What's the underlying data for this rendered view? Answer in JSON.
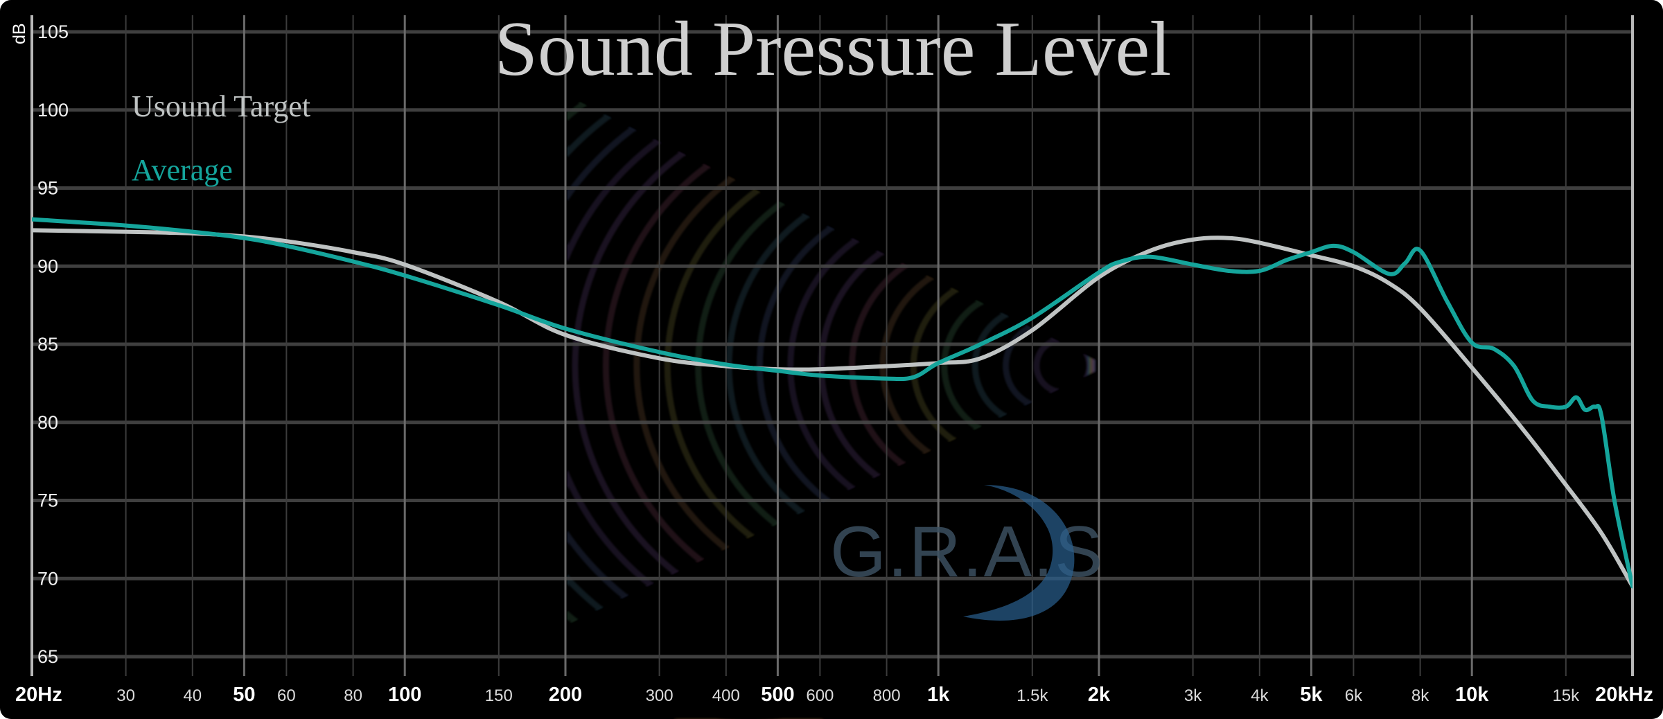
{
  "chart_data": {
    "type": "line",
    "title": "Sound Pressure Level",
    "ylabel": "dB",
    "xscale": "log",
    "xlim": [
      20,
      20000
    ],
    "ylim": [
      64,
      106
    ],
    "y_ticks": [
      105,
      100,
      95,
      90,
      85,
      80,
      75,
      70,
      65
    ],
    "x_ticks": [
      {
        "value": 20,
        "label": "20Hz",
        "major": true
      },
      {
        "value": 30,
        "label": "30",
        "major": false
      },
      {
        "value": 40,
        "label": "40",
        "major": false
      },
      {
        "value": 50,
        "label": "50",
        "major": true
      },
      {
        "value": 60,
        "label": "60",
        "major": false
      },
      {
        "value": 80,
        "label": "80",
        "major": false
      },
      {
        "value": 100,
        "label": "100",
        "major": true
      },
      {
        "value": 150,
        "label": "150",
        "major": false
      },
      {
        "value": 200,
        "label": "200",
        "major": true
      },
      {
        "value": 300,
        "label": "300",
        "major": false
      },
      {
        "value": 400,
        "label": "400",
        "major": false
      },
      {
        "value": 500,
        "label": "500",
        "major": true
      },
      {
        "value": 600,
        "label": "600",
        "major": false
      },
      {
        "value": 800,
        "label": "800",
        "major": false
      },
      {
        "value": 1000,
        "label": "1k",
        "major": true
      },
      {
        "value": 1500,
        "label": "1.5k",
        "major": false
      },
      {
        "value": 2000,
        "label": "2k",
        "major": true
      },
      {
        "value": 3000,
        "label": "3k",
        "major": false
      },
      {
        "value": 4000,
        "label": "4k",
        "major": false
      },
      {
        "value": 5000,
        "label": "5k",
        "major": true
      },
      {
        "value": 6000,
        "label": "6k",
        "major": false
      },
      {
        "value": 8000,
        "label": "8k",
        "major": false
      },
      {
        "value": 10000,
        "label": "10k",
        "major": true
      },
      {
        "value": 15000,
        "label": "15k",
        "major": false
      },
      {
        "value": 20000,
        "label": "20kHz",
        "major": true
      }
    ],
    "grid": true,
    "legend_position": "top-left",
    "series": [
      {
        "name": "Usound Target",
        "color": "#bfc3c3",
        "x": [
          20,
          30,
          40,
          50,
          60,
          80,
          100,
          150,
          200,
          300,
          400,
          500,
          600,
          800,
          1000,
          1200,
          1500,
          2000,
          2500,
          3000,
          3500,
          4000,
          5000,
          6000,
          7000,
          8000,
          10000,
          12500,
          15000,
          17500,
          20000
        ],
        "values": [
          92.3,
          92.2,
          92.1,
          91.9,
          91.6,
          90.9,
          90.1,
          87.7,
          85.6,
          84.1,
          83.6,
          83.4,
          83.4,
          83.6,
          83.8,
          84.1,
          85.9,
          89.3,
          91.0,
          91.7,
          91.8,
          91.5,
          90.7,
          90.0,
          88.9,
          87.3,
          83.5,
          79.5,
          76.0,
          72.9,
          69.5
        ]
      },
      {
        "name": "Average",
        "color": "#15a59c",
        "x": [
          20,
          30,
          40,
          50,
          60,
          80,
          100,
          150,
          200,
          300,
          400,
          500,
          600,
          800,
          900,
          1000,
          1200,
          1500,
          2000,
          2200,
          2500,
          3000,
          3500,
          4000,
          4500,
          5000,
          5500,
          6000,
          7000,
          7500,
          8000,
          9000,
          10000,
          11000,
          12000,
          13000,
          14000,
          15000,
          15700,
          16300,
          17000,
          17500,
          18500,
          20000
        ],
        "values": [
          93.0,
          92.6,
          92.2,
          91.8,
          91.3,
          90.3,
          89.4,
          87.5,
          86.0,
          84.5,
          83.7,
          83.3,
          83.0,
          82.8,
          82.9,
          83.8,
          85.0,
          86.7,
          89.6,
          90.3,
          90.6,
          90.1,
          89.7,
          89.7,
          90.4,
          90.9,
          91.3,
          90.9,
          89.5,
          90.2,
          91.0,
          87.7,
          85.1,
          84.7,
          83.6,
          81.4,
          81.0,
          81.0,
          81.6,
          80.8,
          81.0,
          80.4,
          75.0,
          69.5
        ]
      }
    ]
  },
  "watermark": "G.R.A.S"
}
